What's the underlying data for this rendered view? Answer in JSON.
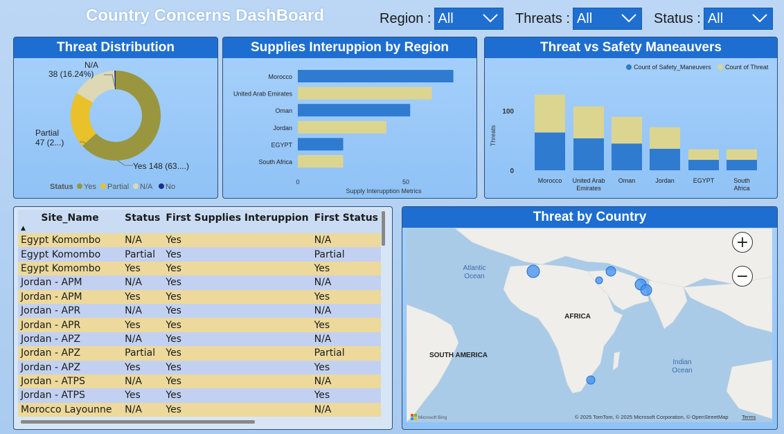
{
  "header": {
    "title": "Country Concerns DashBoard",
    "slicers": [
      {
        "label": "Region :",
        "value": "All"
      },
      {
        "label": "Threats :",
        "value": "All"
      },
      {
        "label": "Status :",
        "value": "All"
      }
    ]
  },
  "donut": {
    "title": "Threat Distribution",
    "legend_title": "Status",
    "legend": [
      {
        "label": "Yes",
        "color": "#9a9640"
      },
      {
        "label": "Partial",
        "color": "#e9c12a"
      },
      {
        "label": "N/A",
        "color": "#ddd9b4"
      },
      {
        "label": "No",
        "color": "#1b2f8a"
      }
    ],
    "labels": {
      "na_name": "N/A",
      "na_value": "38 (16.24%)",
      "partial_name": "Partial",
      "partial_value": "47 (2...)",
      "yes_value": "Yes 148 (63....)"
    }
  },
  "supplies": {
    "title": "Supplies Interuppion by Region",
    "xlabel": "Supply Interupption Metrics",
    "x_ticks": [
      "0",
      "50"
    ]
  },
  "threat_safety": {
    "title": "Threat vs Safety Maneauvers",
    "ylabel": "Threats",
    "y_ticks": [
      "100",
      "0"
    ],
    "legend": [
      {
        "label": "Count of Safety_Maneuvers",
        "color": "#2e7bd0"
      },
      {
        "label": "Count of Threat",
        "color": "#dcd58f"
      }
    ]
  },
  "chart_data": [
    {
      "type": "pie",
      "title": "Threat Distribution",
      "categories": [
        "Yes",
        "Partial",
        "N/A",
        "No"
      ],
      "values": [
        148,
        47,
        38,
        1
      ]
    },
    {
      "type": "bar",
      "orientation": "horizontal",
      "title": "Supplies Interuppion by Region",
      "categories": [
        "Morocco",
        "United Arab Emirates",
        "Oman",
        "Jordan",
        "EGYPT",
        "South Africa"
      ],
      "values": [
        72,
        62,
        52,
        41,
        21,
        21
      ],
      "colors": [
        "#2e7bd0",
        "#dcd58f",
        "#2e7bd0",
        "#dcd58f",
        "#2e7bd0",
        "#dcd58f"
      ],
      "xlabel": "Supply Interupption Metrics",
      "xlim": [
        0,
        100
      ]
    },
    {
      "type": "bar",
      "stacked": true,
      "title": "Threat vs Safety Maneauvers",
      "categories": [
        "Morocco",
        "United Arab Emirates",
        "Oman",
        "Jordan",
        "EGYPT",
        "South Africa"
      ],
      "series": [
        {
          "name": "Count of Safety_Maneuvers",
          "values": [
            65,
            55,
            46,
            37,
            18,
            18
          ]
        },
        {
          "name": "Count of Threat",
          "values": [
            65,
            55,
            46,
            37,
            18,
            18
          ]
        }
      ],
      "ylabel": "Threats",
      "ylim": [
        0,
        160
      ]
    }
  ],
  "table": {
    "columns": [
      "Site_Name",
      "Status",
      "First Supplies Interuppion",
      "First Status"
    ],
    "sort_indicator": "▲",
    "rows": [
      [
        "Egypt Komombo",
        "N/A",
        "Yes",
        "N/A"
      ],
      [
        "Egypt Komombo",
        "Partial",
        "Yes",
        "Partial"
      ],
      [
        "Egypt Komombo",
        "Yes",
        "Yes",
        "Yes"
      ],
      [
        "Jordan - APM",
        "N/A",
        "Yes",
        "N/A"
      ],
      [
        "Jordan - APM",
        "Yes",
        "Yes",
        "Yes"
      ],
      [
        "Jordan - APR",
        "N/A",
        "Yes",
        "N/A"
      ],
      [
        "Jordan - APR",
        "Yes",
        "Yes",
        "Yes"
      ],
      [
        "Jordan - APZ",
        "N/A",
        "Yes",
        "N/A"
      ],
      [
        "Jordan - APZ",
        "Partial",
        "Yes",
        "Partial"
      ],
      [
        "Jordan - APZ",
        "Yes",
        "Yes",
        "Yes"
      ],
      [
        "Jordan - ATPS",
        "N/A",
        "Yes",
        "N/A"
      ],
      [
        "Jordan - ATPS",
        "Yes",
        "Yes",
        "Yes"
      ],
      [
        "Morocco Layounne",
        "N/A",
        "Yes",
        "N/A"
      ]
    ]
  },
  "map": {
    "title": "Threat by Country",
    "labels": {
      "atlantic_1": "Atlantic",
      "atlantic_2": "Ocean",
      "africa": "AFRICA",
      "south_america": "SOUTH AMERICA",
      "indian_1": "Indian",
      "indian_2": "Ocean"
    },
    "attribution": "© 2025 TomTom, © 2025 Microsoft Corporation, © OpenStreetMap",
    "terms": "Terms",
    "bing": "Microsoft Bing",
    "zoom_in": "+",
    "zoom_out": "−"
  }
}
